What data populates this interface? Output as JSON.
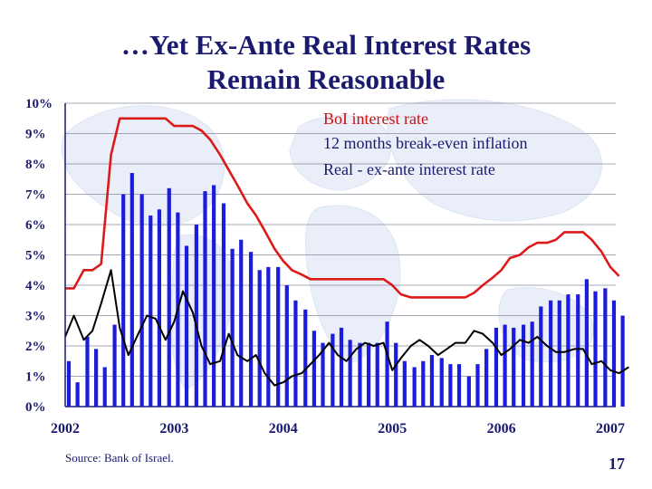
{
  "slide": {
    "title_line1": "…Yet Ex-Ante Real Interest Rates",
    "title_line2": "Remain Reasonable",
    "source": "Source: Bank of Israel.",
    "page_number": "17"
  },
  "colors": {
    "title": "#1a1a6e",
    "bars": "#1c1cdc",
    "boi_line": "#dd1a1a",
    "real_line": "#000000",
    "legend_boi": "#cc1111",
    "legend_other": "#1a1a6e"
  },
  "chart_data": {
    "type": "bar+line",
    "ylim": [
      0,
      10
    ],
    "y_ticks": [
      "0%",
      "1%",
      "2%",
      "3%",
      "4%",
      "5%",
      "6%",
      "7%",
      "8%",
      "9%",
      "10%"
    ],
    "x_ticks": [
      "2002",
      "2003",
      "2004",
      "2005",
      "2006",
      "2007"
    ],
    "grid": true,
    "legend_position": "top-right",
    "series": [
      {
        "name": "BoI interest rate",
        "kind": "line",
        "points": [
          [
            2002.0,
            3.9
          ],
          [
            2002.08,
            3.9
          ],
          [
            2002.17,
            4.5
          ],
          [
            2002.25,
            4.5
          ],
          [
            2002.33,
            4.7
          ],
          [
            2002.42,
            8.3
          ],
          [
            2002.5,
            9.5
          ],
          [
            2002.58,
            9.5
          ],
          [
            2002.67,
            9.5
          ],
          [
            2002.75,
            9.5
          ],
          [
            2002.83,
            9.5
          ],
          [
            2002.92,
            9.5
          ],
          [
            2003.0,
            9.25
          ],
          [
            2003.08,
            9.25
          ],
          [
            2003.17,
            9.25
          ],
          [
            2003.25,
            9.1
          ],
          [
            2003.33,
            8.8
          ],
          [
            2003.42,
            8.3
          ],
          [
            2003.5,
            7.8
          ],
          [
            2003.58,
            7.3
          ],
          [
            2003.67,
            6.7
          ],
          [
            2003.75,
            6.3
          ],
          [
            2003.83,
            5.8
          ],
          [
            2003.92,
            5.2
          ],
          [
            2004.0,
            4.8
          ],
          [
            2004.08,
            4.5
          ],
          [
            2004.17,
            4.35
          ],
          [
            2004.25,
            4.2
          ],
          [
            2004.5,
            4.2
          ],
          [
            2004.75,
            4.2
          ],
          [
            2004.92,
            4.2
          ],
          [
            2005.0,
            4.0
          ],
          [
            2005.08,
            3.7
          ],
          [
            2005.17,
            3.6
          ],
          [
            2005.42,
            3.6
          ],
          [
            2005.67,
            3.6
          ],
          [
            2005.75,
            3.75
          ],
          [
            2005.83,
            4.0
          ],
          [
            2005.92,
            4.25
          ],
          [
            2006.0,
            4.5
          ],
          [
            2006.08,
            4.9
          ],
          [
            2006.17,
            5.0
          ],
          [
            2006.25,
            5.25
          ],
          [
            2006.33,
            5.4
          ],
          [
            2006.42,
            5.4
          ],
          [
            2006.5,
            5.5
          ],
          [
            2006.58,
            5.75
          ],
          [
            2006.67,
            5.75
          ],
          [
            2006.75,
            5.75
          ],
          [
            2006.83,
            5.5
          ],
          [
            2006.92,
            5.1
          ],
          [
            2007.0,
            4.6
          ],
          [
            2007.08,
            4.3
          ]
        ]
      },
      {
        "name": "12 months break-even inflation",
        "kind": "bar",
        "points": [
          [
            2002.0,
            1.5
          ],
          [
            2002.08,
            0.8
          ],
          [
            2002.17,
            2.3
          ],
          [
            2002.25,
            1.9
          ],
          [
            2002.33,
            1.3
          ],
          [
            2002.42,
            2.7
          ],
          [
            2002.5,
            7.0
          ],
          [
            2002.58,
            7.7
          ],
          [
            2002.67,
            7.0
          ],
          [
            2002.75,
            6.3
          ],
          [
            2002.83,
            6.5
          ],
          [
            2002.92,
            7.2
          ],
          [
            2003.0,
            6.4
          ],
          [
            2003.08,
            5.3
          ],
          [
            2003.17,
            6.0
          ],
          [
            2003.25,
            7.1
          ],
          [
            2003.33,
            7.3
          ],
          [
            2003.42,
            6.7
          ],
          [
            2003.5,
            5.2
          ],
          [
            2003.58,
            5.5
          ],
          [
            2003.67,
            5.1
          ],
          [
            2003.75,
            4.5
          ],
          [
            2003.83,
            4.6
          ],
          [
            2003.92,
            4.6
          ],
          [
            2004.0,
            4.0
          ],
          [
            2004.08,
            3.5
          ],
          [
            2004.17,
            3.2
          ],
          [
            2004.25,
            2.5
          ],
          [
            2004.33,
            2.1
          ],
          [
            2004.42,
            2.4
          ],
          [
            2004.5,
            2.6
          ],
          [
            2004.58,
            2.2
          ],
          [
            2004.67,
            2.1
          ],
          [
            2004.75,
            2.1
          ],
          [
            2004.83,
            2.1
          ],
          [
            2004.92,
            2.8
          ],
          [
            2005.0,
            2.1
          ],
          [
            2005.08,
            1.5
          ],
          [
            2005.17,
            1.3
          ],
          [
            2005.25,
            1.5
          ],
          [
            2005.33,
            1.7
          ],
          [
            2005.42,
            1.6
          ],
          [
            2005.5,
            1.4
          ],
          [
            2005.58,
            1.4
          ],
          [
            2005.67,
            1.0
          ],
          [
            2005.75,
            1.4
          ],
          [
            2005.83,
            1.9
          ],
          [
            2005.92,
            2.6
          ],
          [
            2006.0,
            2.7
          ],
          [
            2006.08,
            2.6
          ],
          [
            2006.17,
            2.7
          ],
          [
            2006.25,
            2.8
          ],
          [
            2006.33,
            3.3
          ],
          [
            2006.42,
            3.5
          ],
          [
            2006.5,
            3.5
          ],
          [
            2006.58,
            3.7
          ],
          [
            2006.67,
            3.7
          ],
          [
            2006.75,
            4.2
          ],
          [
            2006.83,
            3.8
          ],
          [
            2006.92,
            3.9
          ],
          [
            2007.0,
            3.5
          ],
          [
            2007.08,
            3.0
          ]
        ]
      },
      {
        "name": "Real - ex-ante interest rate",
        "kind": "line",
        "points": [
          [
            2002.0,
            2.3
          ],
          [
            2002.08,
            3.0
          ],
          [
            2002.17,
            2.2
          ],
          [
            2002.25,
            2.5
          ],
          [
            2002.33,
            3.4
          ],
          [
            2002.42,
            4.5
          ],
          [
            2002.5,
            2.6
          ],
          [
            2002.58,
            1.7
          ],
          [
            2002.67,
            2.4
          ],
          [
            2002.75,
            3.0
          ],
          [
            2002.83,
            2.9
          ],
          [
            2002.92,
            2.2
          ],
          [
            2003.0,
            2.8
          ],
          [
            2003.08,
            3.8
          ],
          [
            2003.17,
            3.1
          ],
          [
            2003.25,
            2.0
          ],
          [
            2003.33,
            1.4
          ],
          [
            2003.42,
            1.5
          ],
          [
            2003.5,
            2.4
          ],
          [
            2003.58,
            1.7
          ],
          [
            2003.67,
            1.5
          ],
          [
            2003.75,
            1.7
          ],
          [
            2003.83,
            1.1
          ],
          [
            2003.92,
            0.7
          ],
          [
            2004.0,
            0.8
          ],
          [
            2004.08,
            1.0
          ],
          [
            2004.17,
            1.1
          ],
          [
            2004.25,
            1.4
          ],
          [
            2004.33,
            1.7
          ],
          [
            2004.42,
            2.1
          ],
          [
            2004.5,
            1.7
          ],
          [
            2004.58,
            1.5
          ],
          [
            2004.67,
            1.9
          ],
          [
            2004.75,
            2.1
          ],
          [
            2004.83,
            2.0
          ],
          [
            2004.92,
            2.1
          ],
          [
            2005.0,
            1.2
          ],
          [
            2005.08,
            1.6
          ],
          [
            2005.17,
            2.0
          ],
          [
            2005.25,
            2.2
          ],
          [
            2005.33,
            2.0
          ],
          [
            2005.42,
            1.7
          ],
          [
            2005.5,
            1.9
          ],
          [
            2005.58,
            2.1
          ],
          [
            2005.67,
            2.1
          ],
          [
            2005.75,
            2.5
          ],
          [
            2005.83,
            2.4
          ],
          [
            2005.92,
            2.1
          ],
          [
            2006.0,
            1.7
          ],
          [
            2006.08,
            1.9
          ],
          [
            2006.17,
            2.2
          ],
          [
            2006.25,
            2.1
          ],
          [
            2006.33,
            2.3
          ],
          [
            2006.42,
            2.0
          ],
          [
            2006.5,
            1.8
          ],
          [
            2006.58,
            1.8
          ],
          [
            2006.67,
            1.9
          ],
          [
            2006.75,
            1.9
          ],
          [
            2006.83,
            1.4
          ],
          [
            2006.92,
            1.5
          ],
          [
            2007.0,
            1.2
          ],
          [
            2007.08,
            1.1
          ],
          [
            2007.17,
            1.3
          ]
        ]
      }
    ]
  }
}
